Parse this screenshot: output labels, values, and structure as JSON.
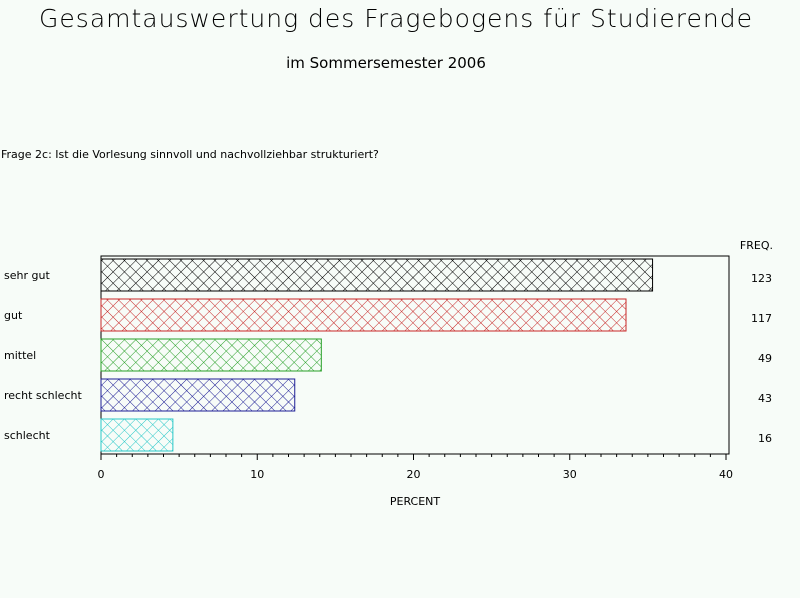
{
  "title": "Gesamtauswertung des Fragebogens für Studierende",
  "subtitle": "im Sommersemester 2006",
  "question": "Frage 2c: Ist die Vorlesung sinnvoll und nachvollziehbar strukturiert?",
  "chart_data": {
    "type": "bar",
    "orientation": "horizontal",
    "categories": [
      "sehr gut",
      "gut",
      "mittel",
      "recht schlecht",
      "schlecht"
    ],
    "values": [
      35.3,
      33.6,
      14.1,
      12.4,
      4.6
    ],
    "freq": [
      123,
      117,
      49,
      43,
      16
    ],
    "freq_label": "FREQ.",
    "xlabel": "PERCENT",
    "xlim": [
      0,
      40
    ],
    "xticks": [
      0,
      10,
      20,
      30,
      40
    ],
    "colors": [
      "#000000",
      "#c82828",
      "#28a028",
      "#1e1e96",
      "#28c8c8"
    ],
    "fill": "crosshatch",
    "grid": false
  }
}
